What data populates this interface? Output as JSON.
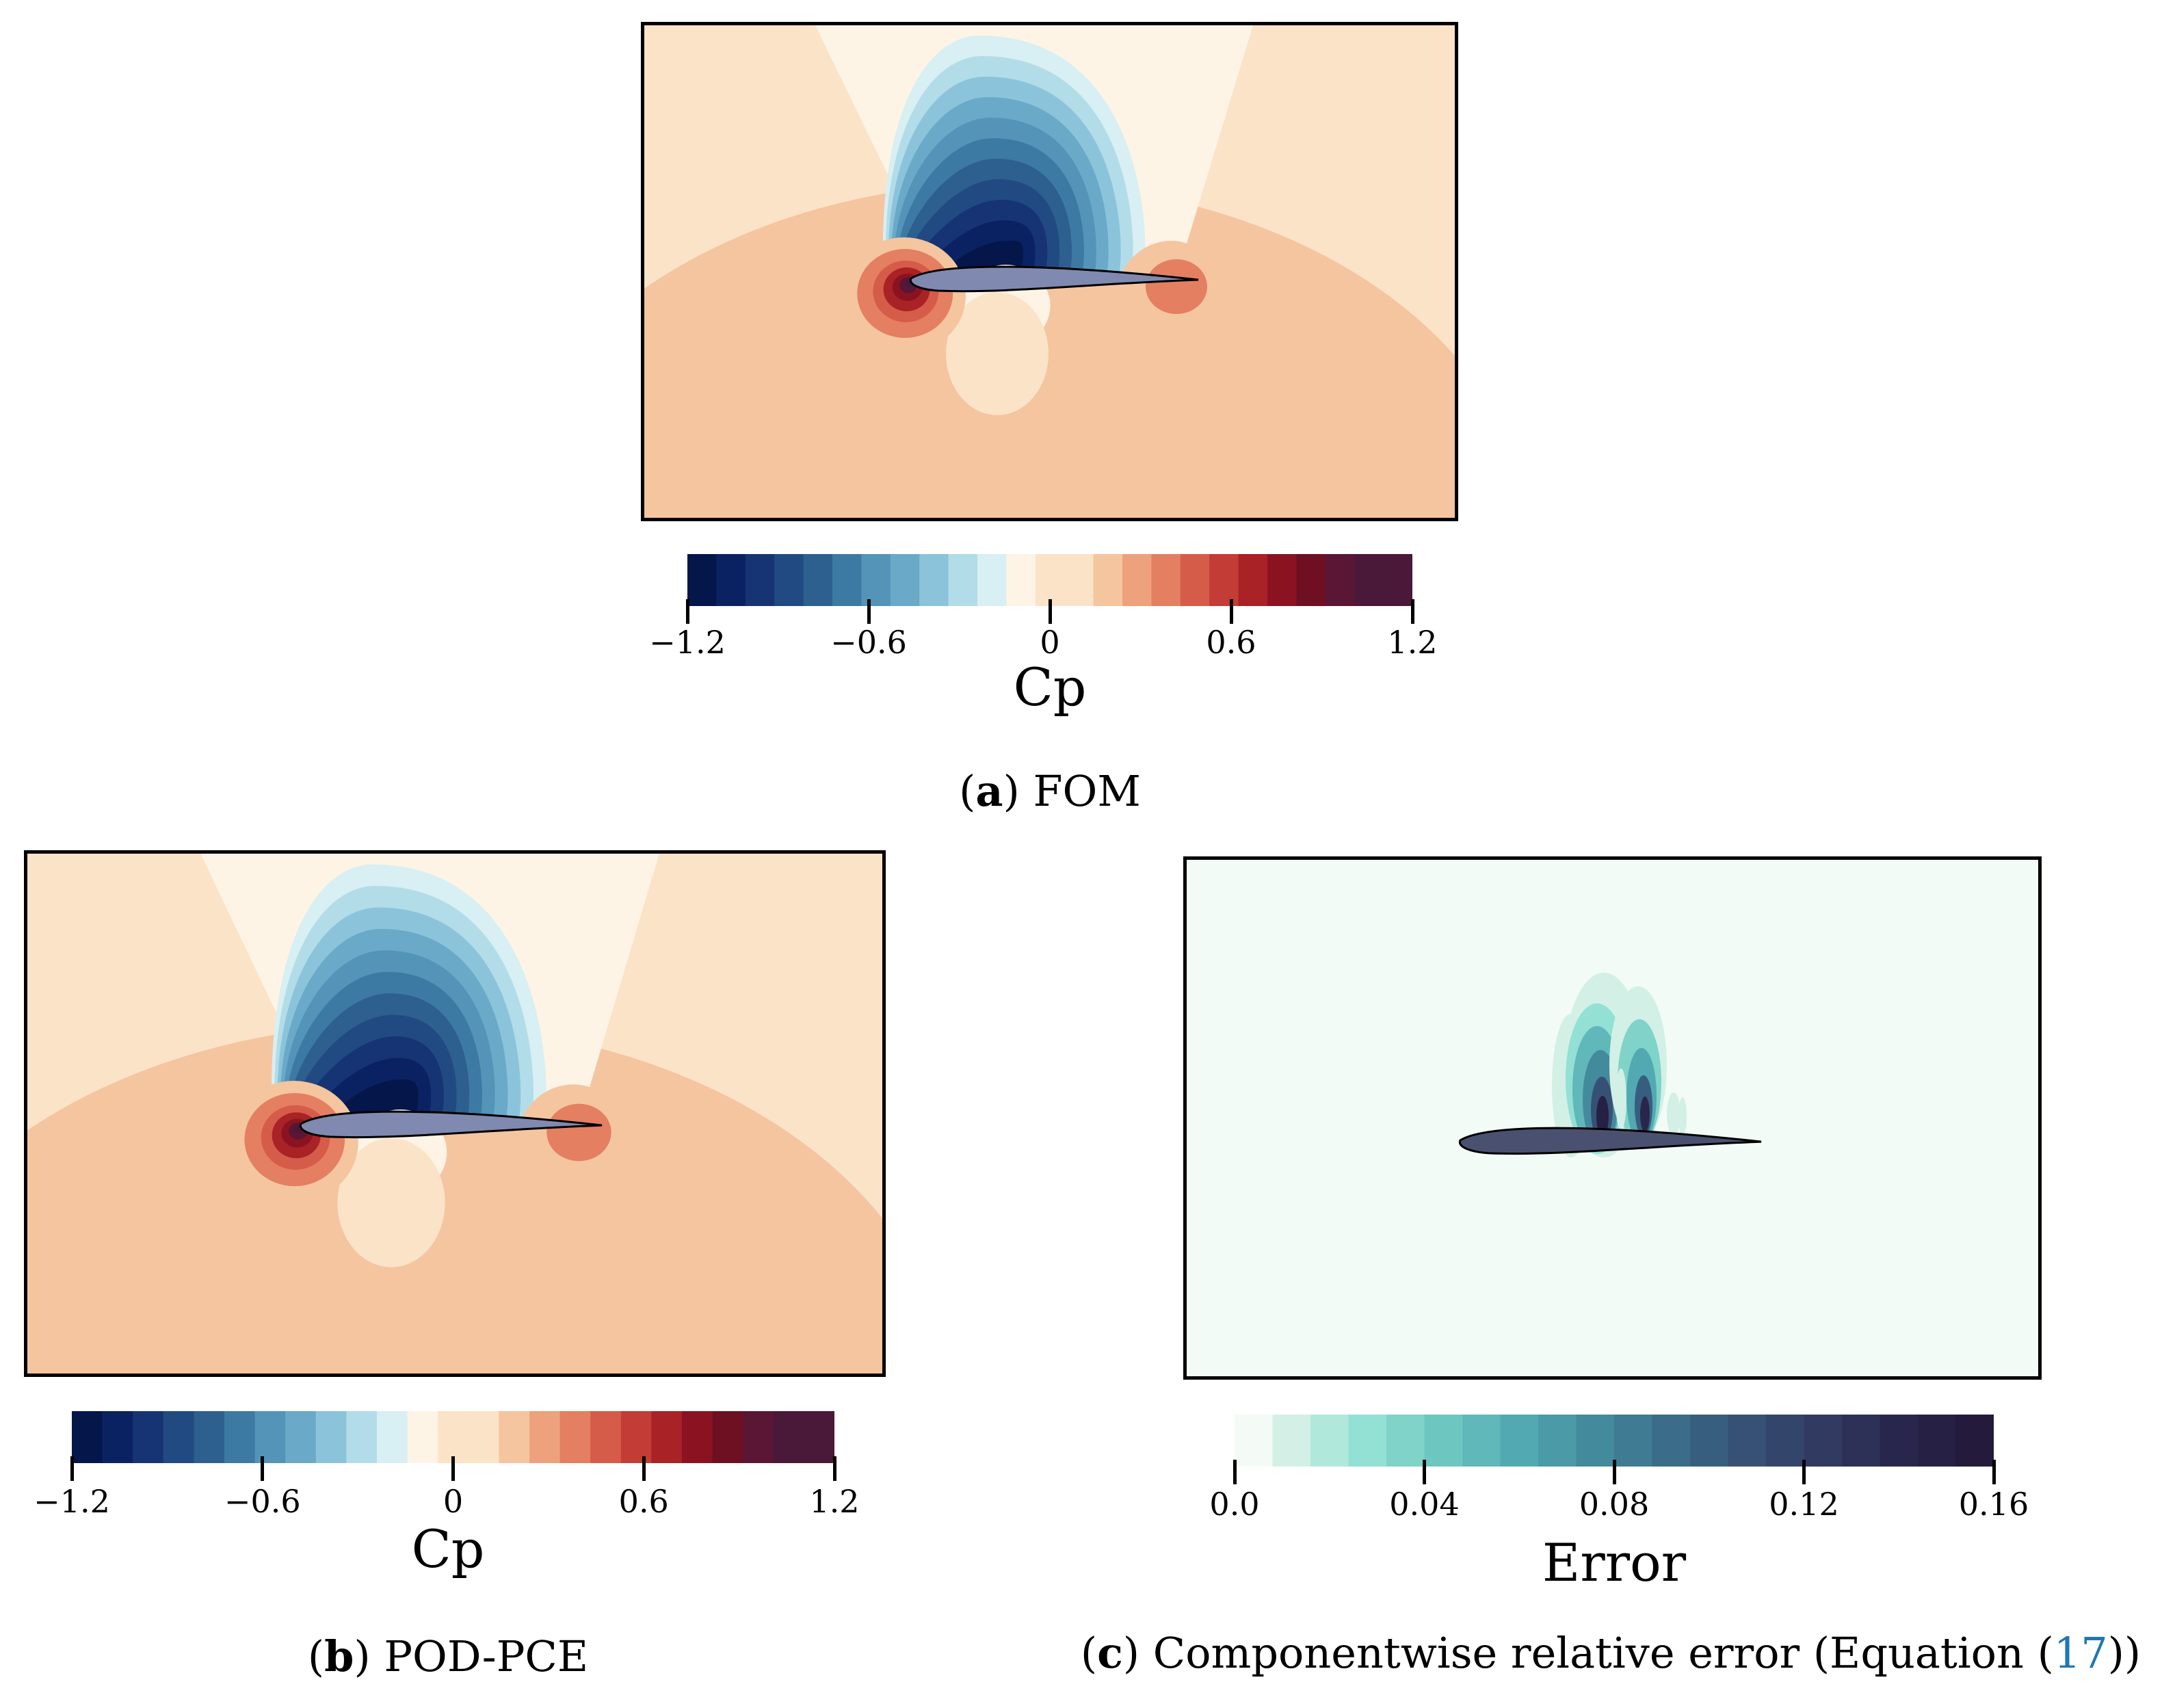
{
  "chart_data": [
    {
      "type": "heatmap",
      "panel": "a",
      "title": "FOM",
      "caption_letter": "a",
      "quantity": "Cp",
      "colorbar": {
        "label": "Cp",
        "vmin": -1.2,
        "vmax": 1.2,
        "levels": 25,
        "ticks": [
          -1.2,
          -0.6,
          0,
          0.6,
          1.2
        ],
        "tick_labels": [
          "−1.2",
          "−0.6",
          "0",
          "0.6",
          "1.2"
        ],
        "colormap": "RdBu_r"
      },
      "features": [
        "suction region above airfoil (Cp min ≈ −1.2)",
        "stagnation at leading edge (Cp ≈ 1.0)",
        "trailing-edge recovery (Cp ≈ 0.3)"
      ]
    },
    {
      "type": "heatmap",
      "panel": "b",
      "title": "POD-PCE",
      "caption_letter": "b",
      "quantity": "Cp",
      "colorbar": {
        "label": "Cp",
        "vmin": -1.2,
        "vmax": 1.2,
        "levels": 25,
        "ticks": [
          -1.2,
          -0.6,
          0,
          0.6,
          1.2
        ],
        "tick_labels": [
          "−1.2",
          "−0.6",
          "0",
          "0.6",
          "1.2"
        ],
        "colormap": "RdBu_r"
      }
    },
    {
      "type": "heatmap",
      "panel": "c",
      "title": "Componentwise relative error (Equation (17))",
      "caption_letter": "c",
      "caption_text": "Componentwise relative error (Equation (",
      "caption_ref": "17",
      "caption_tail": "))",
      "quantity": "Error",
      "colorbar": {
        "label": "Error",
        "vmin": 0.0,
        "vmax": 0.16,
        "levels": 20,
        "ticks": [
          0.0,
          0.04,
          0.08,
          0.12,
          0.16
        ],
        "tick_labels": [
          "0.0",
          "0.04",
          "0.08",
          "0.12",
          "0.16"
        ],
        "colormap": "teal-navy"
      },
      "features": [
        "error concentrated above mid-chord of airfoil",
        "max error ≈ 0.16"
      ]
    }
  ],
  "colors": {
    "rdbu": [
      "#05164b",
      "#0b2262",
      "#163474",
      "#224a82",
      "#2d5f8f",
      "#3d7aa3",
      "#5394b8",
      "#6ba9c9",
      "#8bc4da",
      "#b2dde8",
      "#d8eff3",
      "#fdf4e6",
      "#fbe3c8",
      "#f5c5a0",
      "#eea17d",
      "#e47f61",
      "#d55c49",
      "#c33c35",
      "#a82226",
      "#8b1321",
      "#6e0f22",
      "#5a1635",
      "#4a1838",
      "#4a1838"
    ],
    "err": [
      "#f4fbf7",
      "#d2f0e6",
      "#b0e8dc",
      "#93e0d4",
      "#7fd3c9",
      "#6ec6c1",
      "#60b8ba",
      "#52a9b2",
      "#4a9aa8",
      "#448a9d",
      "#3f7b93",
      "#3b6c89",
      "#385e7f",
      "#365175",
      "#34456b",
      "#313a61",
      "#2d3057",
      "#29264d",
      "#262044",
      "#241a3b"
    ],
    "airfoil_fill": "#8089b0",
    "airfoil_fill_err": "#4a5070",
    "error_bg": "#f3fbf6",
    "ref_link": "#1f77b4"
  }
}
